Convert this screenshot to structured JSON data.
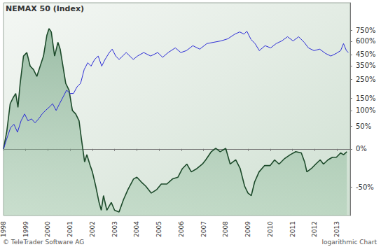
{
  "chart_data": {
    "type": "line",
    "title": "NEMAX 50 (Index)",
    "annotations": [
      "© TeleTrader Software AG",
      "logarithmic Chart"
    ],
    "log": "y",
    "grid": false,
    "xlim": [
      1998,
      2013.6
    ],
    "xticks": [
      1998,
      1999,
      2000,
      2001,
      2002,
      2003,
      2004,
      2005,
      2006,
      2007,
      2008,
      2009,
      2010,
      2011,
      2012,
      2013
    ],
    "ylim": [
      -70,
      1300
    ],
    "yticks": [
      {
        "value": -50,
        "label": "-50%"
      },
      {
        "value": 0,
        "label": "0%"
      },
      {
        "value": 50,
        "label": "50%"
      },
      {
        "value": 100,
        "label": "100%"
      },
      {
        "value": 150,
        "label": "150%"
      },
      {
        "value": 250,
        "label": "250%"
      },
      {
        "value": 350,
        "label": "350%"
      },
      {
        "value": 450,
        "label": "450%"
      },
      {
        "value": 600,
        "label": "600%"
      },
      {
        "value": 750,
        "label": "750%"
      }
    ],
    "series": [
      {
        "type": "area",
        "color": "#1c4a2a",
        "x": [
          1998.0,
          1998.15,
          1998.3,
          1998.45,
          1998.55,
          1998.65,
          1998.75,
          1998.9,
          1999.05,
          1999.2,
          1999.35,
          1999.5,
          1999.65,
          1999.8,
          1999.95,
          2000.05,
          2000.15,
          2000.3,
          2000.45,
          2000.55,
          2000.7,
          2000.8,
          2000.95,
          2001.1,
          2001.25,
          2001.4,
          2001.5,
          2001.65,
          2001.75,
          2001.9,
          2002.0,
          2002.15,
          2002.3,
          2002.4,
          2002.5,
          2002.65,
          2002.85,
          2003.0,
          2003.2,
          2003.4,
          2003.6,
          2003.85,
          2004.0,
          2004.2,
          2004.4,
          2004.65,
          2004.9,
          2005.1,
          2005.35,
          2005.6,
          2005.85,
          2006.05,
          2006.25,
          2006.45,
          2006.7,
          2006.95,
          2007.1,
          2007.35,
          2007.55,
          2007.75,
          2008.0,
          2008.2,
          2008.45,
          2008.65,
          2008.85,
          2009.0,
          2009.15,
          2009.3,
          2009.5,
          2009.75,
          2010.0,
          2010.2,
          2010.4,
          2010.65,
          2010.9,
          2011.15,
          2011.4,
          2011.55,
          2011.65,
          2011.85,
          2012.05,
          2012.25,
          2012.4,
          2012.6,
          2012.8,
          2012.98,
          2013.17,
          2013.3,
          2013.45
        ],
        "values": [
          0,
          38,
          126,
          155,
          172,
          112,
          227,
          435,
          470,
          346,
          319,
          270,
          346,
          435,
          677,
          779,
          727,
          435,
          586,
          506,
          319,
          227,
          189,
          100,
          88,
          66,
          22,
          -21,
          -10,
          -26,
          -34,
          -49,
          -62,
          -67,
          -57,
          -67,
          -62,
          -67,
          -68,
          -60,
          -52,
          -42,
          -40,
          -45,
          -49,
          -55,
          -52,
          -47,
          -47,
          -42,
          -40,
          -30,
          -24,
          -34,
          -30,
          -24,
          -18,
          -5,
          1,
          -5,
          1,
          -24,
          -18,
          -30,
          -49,
          -55,
          -57,
          -45,
          -34,
          -26,
          -26,
          -18,
          -24,
          -16,
          -10,
          -5,
          -7,
          -21,
          -34,
          -30,
          -24,
          -18,
          -24,
          -18,
          -14,
          -14,
          -7,
          -10,
          -5
        ]
      },
      {
        "type": "line",
        "color": "#2b2bd6",
        "x": [
          1998.0,
          1998.16,
          1998.32,
          1998.47,
          1998.63,
          1998.79,
          1998.95,
          1999.1,
          1999.26,
          1999.42,
          1999.58,
          1999.74,
          1999.89,
          2000.05,
          2000.21,
          2000.37,
          2000.52,
          2000.68,
          2000.84,
          2001.0,
          2001.15,
          2001.31,
          2001.47,
          2001.63,
          2001.79,
          2001.94,
          2002.1,
          2002.26,
          2002.42,
          2002.57,
          2002.76,
          2002.89,
          2003.05,
          2003.2,
          2003.36,
          2003.52,
          2003.84,
          2004.03,
          2004.31,
          2004.62,
          2004.94,
          2005.16,
          2005.41,
          2005.73,
          2005.98,
          2006.23,
          2006.52,
          2006.83,
          2007.15,
          2007.46,
          2007.78,
          2008.09,
          2008.41,
          2008.63,
          2008.82,
          2008.95,
          2009.14,
          2009.32,
          2009.51,
          2009.77,
          2010.02,
          2010.27,
          2010.52,
          2010.78,
          2011.03,
          2011.28,
          2011.53,
          2011.72,
          2011.97,
          2012.23,
          2012.48,
          2012.73,
          2012.98,
          2013.17,
          2013.3,
          2013.43,
          2013.52
        ],
        "values": [
          0,
          22,
          47,
          56,
          35,
          66,
          88,
          66,
          72,
          60,
          72,
          88,
          100,
          112,
          126,
          100,
          126,
          155,
          189,
          172,
          172,
          207,
          227,
          319,
          374,
          346,
          403,
          435,
          346,
          403,
          470,
          506,
          435,
          403,
          435,
          470,
          403,
          435,
          470,
          435,
          470,
          423,
          470,
          520,
          470,
          490,
          545,
          506,
          570,
          586,
          603,
          630,
          695,
          727,
          695,
          737,
          621,
          570,
          490,
          545,
          520,
          570,
          603,
          658,
          603,
          658,
          586,
          520,
          490,
          506,
          462,
          435,
          462,
          490,
          570,
          490,
          470
        ]
      }
    ]
  }
}
